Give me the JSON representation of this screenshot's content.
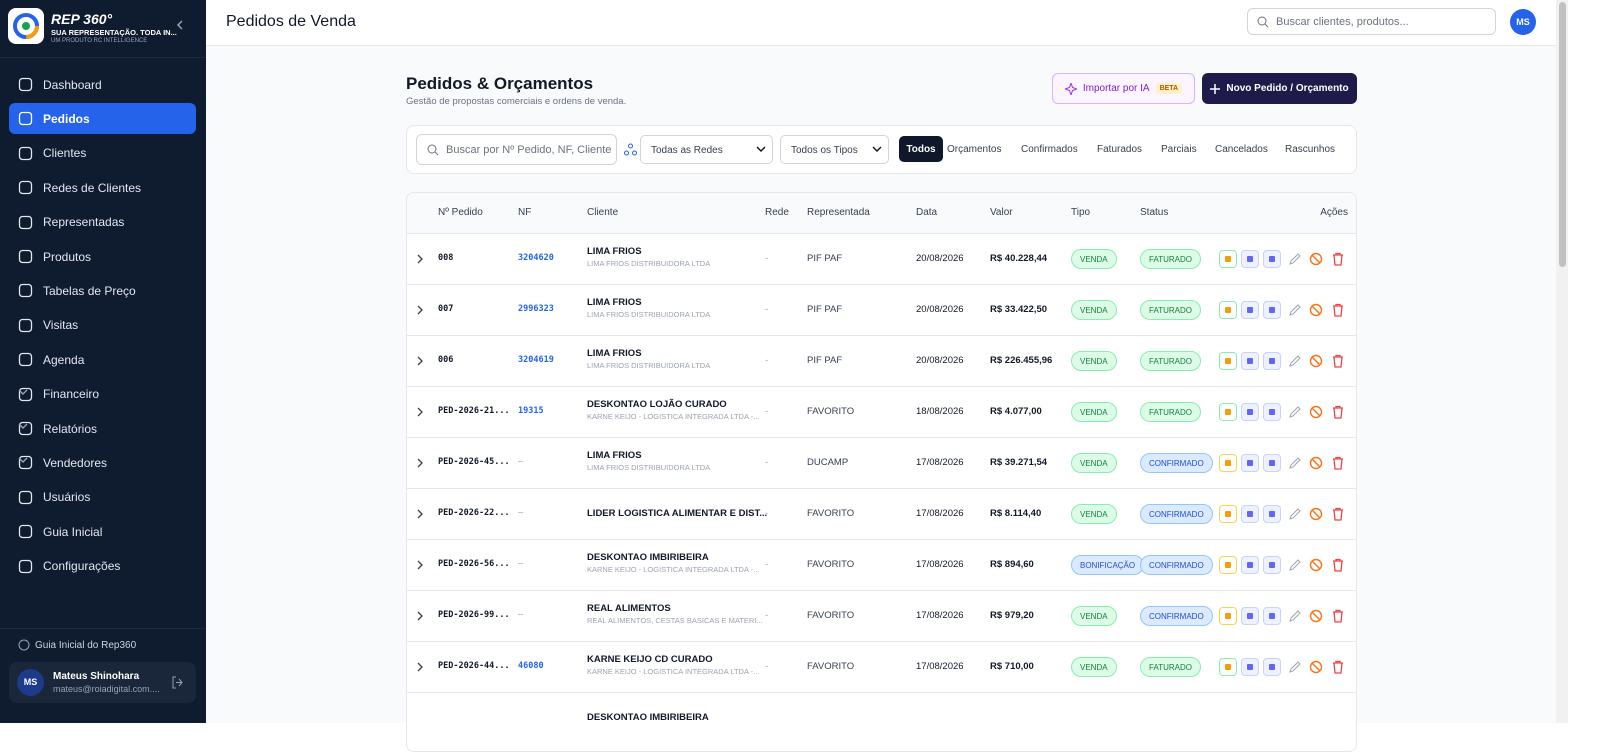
{
  "sidebar": {
    "brand": "REP 360°",
    "tagline": "SUA REPRESENTAÇÃO. TODA IN...",
    "subtagline": "UM PRODUTO RC INTELLIGENCE",
    "nav": [
      "Dashboard",
      "Pedidos",
      "Clientes",
      "Redes de Clientes",
      "Representadas",
      "Produtos",
      "Tabelas de Preço",
      "Visitas",
      "Agenda",
      "Financeiro",
      "Relatórios",
      "Vendedores",
      "Usuários",
      "Guia Inicial",
      "Configurações"
    ],
    "help": "Guia Inicial do Rep360",
    "user": {
      "initials": "MS",
      "name": "Mateus Shinohara",
      "email": "mateus@roiadigital.com...."
    }
  },
  "header": {
    "title": "Pedidos de Venda",
    "search_placeholder": "Buscar clientes, produtos...",
    "avatar": "MS"
  },
  "page": {
    "title": "Pedidos & Orçamentos",
    "subtitle": "Gestão de propostas comerciais e ordens de venda.",
    "import_button": "Importar por IA",
    "import_badge": "BETA",
    "new_button": "Novo Pedido / Orçamento"
  },
  "filters": {
    "search_placeholder": "Buscar por Nº Pedido, NF, Cliente",
    "networks": "Todas as Redes",
    "types": "Todos os Tipos",
    "tabs": [
      "Todos",
      "Orçamentos",
      "Confirmados",
      "Faturados",
      "Parciais",
      "Cancelados",
      "Rascunhos"
    ]
  },
  "table": {
    "columns": [
      "Nº Pedido",
      "NF",
      "Cliente",
      "Rede",
      "Representada",
      "Data",
      "Valor",
      "Tipo",
      "Status",
      "Ações"
    ],
    "rows": [
      {
        "pedido": "008",
        "nf": "3204620",
        "cliente": "LIMA FRIOS",
        "cliente_sub": "LIMA FRIOS DISTRIBUIDORA LTDA",
        "rede": "-",
        "representada": "PIF PAF",
        "data": "20/08/2026",
        "valor": "R$ 40.228,44",
        "tipo": "VENDA",
        "tipo_color": "green",
        "status": "FATURADO",
        "status_color": "green"
      },
      {
        "pedido": "007",
        "nf": "2996323",
        "cliente": "LIMA FRIOS",
        "cliente_sub": "LIMA FRIOS DISTRIBUIDORA LTDA",
        "rede": "-",
        "representada": "PIF PAF",
        "data": "20/08/2026",
        "valor": "R$ 33.422,50",
        "tipo": "VENDA",
        "tipo_color": "green",
        "status": "FATURADO",
        "status_color": "green"
      },
      {
        "pedido": "006",
        "nf": "3204619",
        "cliente": "LIMA FRIOS",
        "cliente_sub": "LIMA FRIOS DISTRIBUIDORA LTDA",
        "rede": "-",
        "representada": "PIF PAF",
        "data": "20/08/2026",
        "valor": "R$ 226.455,96",
        "tipo": "VENDA",
        "tipo_color": "green",
        "status": "FATURADO",
        "status_color": "green"
      },
      {
        "pedido": "PED-2026-21...",
        "nf": "19315",
        "cliente": "DESKONTAO LOJÃO CURADO",
        "cliente_sub": "KARNE KEIJO - LOGISTICA INTEGRADA LTDA -...",
        "rede": "-",
        "representada": "FAVORITO",
        "data": "18/08/2026",
        "valor": "R$ 4.077,00",
        "tipo": "VENDA",
        "tipo_color": "green",
        "status": "FATURADO",
        "status_color": "green"
      },
      {
        "pedido": "PED-2026-45...",
        "nf": "—",
        "cliente": "LIMA FRIOS",
        "cliente_sub": "LIMA FRIOS DISTRIBUIDORA LTDA",
        "rede": "-",
        "representada": "DUCAMP",
        "data": "17/08/2026",
        "valor": "R$ 39.271,54",
        "tipo": "VENDA",
        "tipo_color": "green",
        "status": "CONFIRMADO",
        "status_color": "blue"
      },
      {
        "pedido": "PED-2026-22...",
        "nf": "—",
        "cliente": "LIDER LOGISTICA ALIMENTAR E DIST...",
        "rede": "-",
        "representada": "FAVORITO",
        "data": "17/08/2026",
        "valor": "R$ 8.114,40",
        "tipo": "VENDA",
        "tipo_color": "green",
        "status": "CONFIRMADO",
        "status_color": "blue"
      },
      {
        "pedido": "PED-2026-56...",
        "nf": "—",
        "cliente": "DESKONTAO IMBIRIBEIRA",
        "cliente_sub": "KARNE KEIJO - LOGISTICA INTEGRADA LTDA -...",
        "rede": "-",
        "representada": "FAVORITO",
        "data": "17/08/2026",
        "valor": "R$ 894,60",
        "tipo": "BONIFICAÇÃO",
        "tipo_color": "blue",
        "status": "CONFIRMADO",
        "status_color": "blue"
      },
      {
        "pedido": "PED-2026-99...",
        "nf": "—",
        "cliente": "REAL ALIMENTOS",
        "cliente_sub": "REAL ALIMENTOS, CESTAS BASICAS E MATERI...",
        "rede": "-",
        "representada": "FAVORITO",
        "data": "17/08/2026",
        "valor": "R$ 979,20",
        "tipo": "VENDA",
        "tipo_color": "green",
        "status": "CONFIRMADO",
        "status_color": "blue"
      },
      {
        "pedido": "PED-2026-44...",
        "nf": "46080",
        "cliente": "KARNE KEIJO CD CURADO",
        "cliente_sub": "KARNE KEIJO - LOGISTICA INTEGRADA LTDA -...",
        "rede": "-",
        "representada": "FAVORITO",
        "data": "17/08/2026",
        "valor": "R$ 710,00",
        "tipo": "VENDA",
        "tipo_color": "green",
        "status": "FATURADO",
        "status_color": "green"
      },
      {
        "cliente": "DESKONTAO IMBIRIBEIRA"
      }
    ]
  }
}
